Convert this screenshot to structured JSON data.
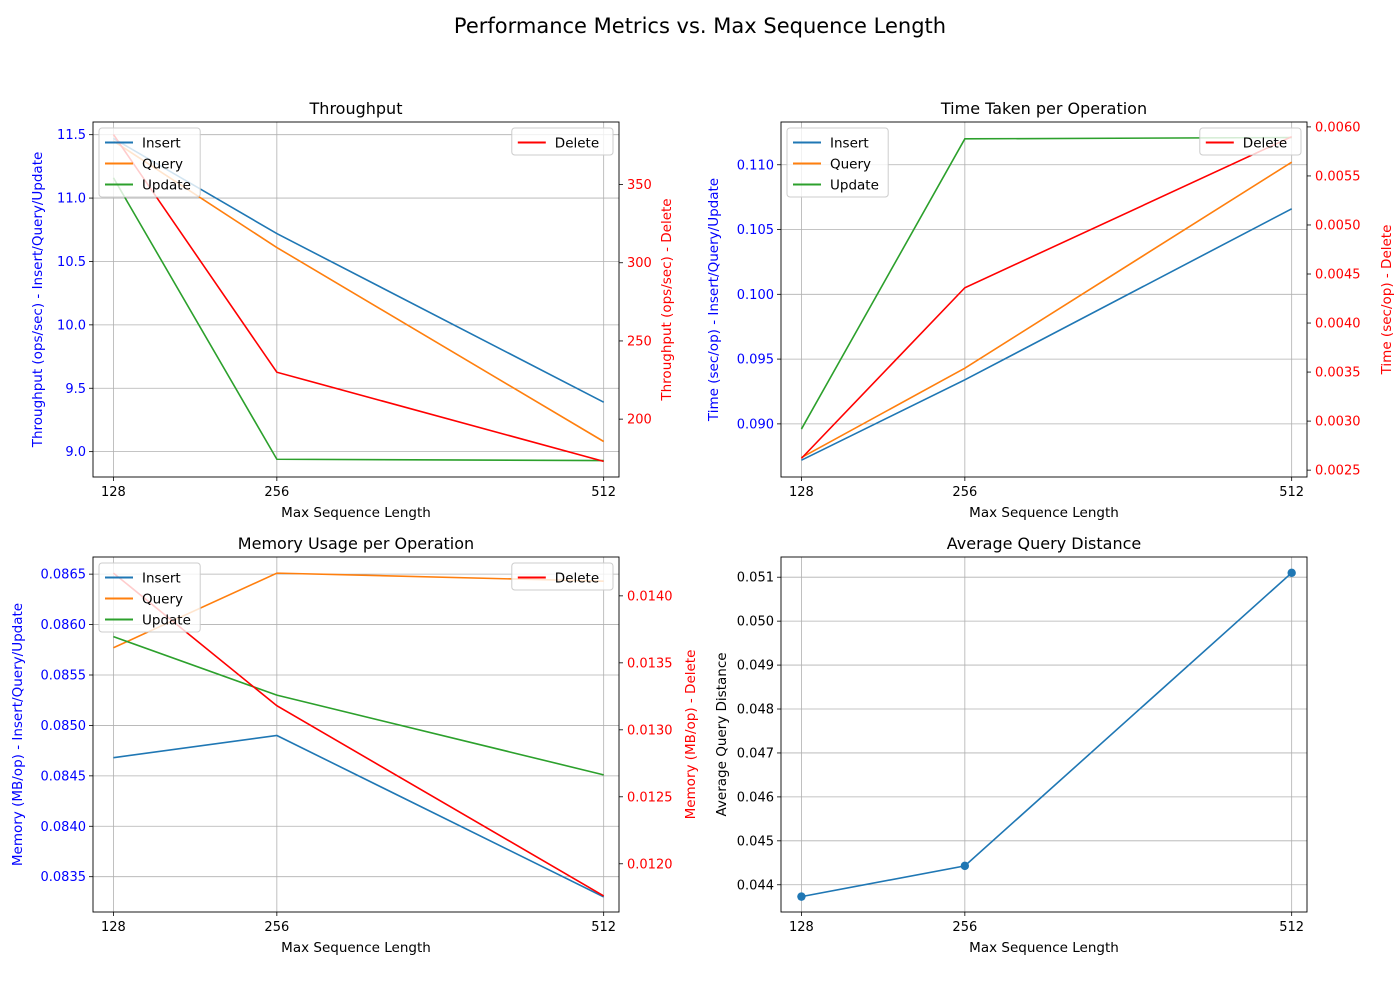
{
  "figure": {
    "title": "Performance Metrics vs. Max Sequence Length"
  },
  "colors": {
    "insert": "#1f77b4",
    "query": "#ff7f0e",
    "update": "#2ca02c",
    "delete": "#ff0000",
    "left_axis": "#0000ff",
    "right_axis": "#ff0000",
    "grid": "#b0b0b0"
  },
  "chart_data": [
    {
      "id": "throughput",
      "type": "line",
      "title": "Throughput",
      "xlabel": "Max Sequence Length",
      "ylabel": "Throughput (ops/sec) - Insert/Query/Update",
      "ylabel_right": "Throughput (ops/sec) - Delete",
      "x": [
        128,
        256,
        512
      ],
      "xlim": [
        112,
        524
      ],
      "ylim": [
        8.8,
        11.6
      ],
      "ylim_right": [
        163,
        390
      ],
      "yticks": [
        9.0,
        9.5,
        10.0,
        10.5,
        11.0,
        11.5
      ],
      "yticks_right": [
        200,
        250,
        300,
        350
      ],
      "ytick_decimals": 1,
      "ytick_decimals_right": 0,
      "series": [
        {
          "name": "Insert",
          "color": "#1f77b4",
          "values": [
            11.47,
            10.72,
            9.39
          ]
        },
        {
          "name": "Query",
          "color": "#ff7f0e",
          "values": [
            11.45,
            10.61,
            9.08
          ]
        },
        {
          "name": "Update",
          "color": "#2ca02c",
          "values": [
            11.16,
            8.94,
            8.93
          ]
        }
      ],
      "series_right": [
        {
          "name": "Delete",
          "color": "#ff0000",
          "values": [
            382,
            230,
            173
          ]
        }
      ],
      "legend": "top-left",
      "legend_right": "top-right",
      "grid": true
    },
    {
      "id": "time",
      "type": "line",
      "title": "Time Taken per Operation",
      "xlabel": "Max Sequence Length",
      "ylabel": "Time (sec/op) - Insert/Query/Update",
      "ylabel_right": "Time (sec/op) - Delete",
      "x": [
        128,
        256,
        512
      ],
      "xlim": [
        112,
        524
      ],
      "ylim": [
        0.0859,
        0.1133
      ],
      "ylim_right": [
        0.00243,
        0.00605
      ],
      "yticks": [
        0.09,
        0.095,
        0.1,
        0.105,
        0.11
      ],
      "yticks_right": [
        0.0025,
        0.003,
        0.0035,
        0.004,
        0.0045,
        0.005,
        0.0055,
        0.006
      ],
      "ytick_decimals": 3,
      "ytick_decimals_right": 4,
      "series": [
        {
          "name": "Insert",
          "color": "#1f77b4",
          "values": [
            0.0872,
            0.0934,
            0.1066
          ]
        },
        {
          "name": "Query",
          "color": "#ff7f0e",
          "values": [
            0.0874,
            0.0943,
            0.1102
          ]
        },
        {
          "name": "Update",
          "color": "#2ca02c",
          "values": [
            0.0896,
            0.112,
            0.1121
          ]
        }
      ],
      "series_right": [
        {
          "name": "Delete",
          "color": "#ff0000",
          "values": [
            0.00262,
            0.00436,
            0.0059
          ]
        }
      ],
      "legend": "top-left",
      "legend_right": "top-right",
      "grid": true
    },
    {
      "id": "memory",
      "type": "line",
      "title": "Memory Usage per Operation",
      "xlabel": "Max Sequence Length",
      "ylabel": "Memory (MB/op) - Insert/Query/Update",
      "ylabel_right": "Memory (MB/op) - Delete",
      "x": [
        128,
        256,
        512
      ],
      "xlim": [
        112,
        524
      ],
      "ylim": [
        0.08315,
        0.08667
      ],
      "ylim_right": [
        0.01164,
        0.01429
      ],
      "yticks": [
        0.0835,
        0.084,
        0.0845,
        0.085,
        0.0855,
        0.086,
        0.0865
      ],
      "yticks_right": [
        0.012,
        0.0125,
        0.013,
        0.0135,
        0.014
      ],
      "ytick_decimals": 4,
      "ytick_decimals_right": 4,
      "series": [
        {
          "name": "Insert",
          "color": "#1f77b4",
          "values": [
            0.08468,
            0.0849,
            0.0833
          ]
        },
        {
          "name": "Query",
          "color": "#ff7f0e",
          "values": [
            0.08577,
            0.08651,
            0.08643
          ]
        },
        {
          "name": "Update",
          "color": "#2ca02c",
          "values": [
            0.08588,
            0.0853,
            0.08451
          ]
        }
      ],
      "series_right": [
        {
          "name": "Delete",
          "color": "#ff0000",
          "values": [
            0.01417,
            0.01318,
            0.01176
          ]
        }
      ],
      "legend": "top-left",
      "legend_right": "top-right",
      "grid": true
    },
    {
      "id": "distance",
      "type": "line",
      "title": "Average Query Distance",
      "xlabel": "Max Sequence Length",
      "ylabel": "Average Query Distance",
      "x": [
        128,
        256,
        512
      ],
      "xlim": [
        112,
        524
      ],
      "ylim": [
        0.04338,
        0.05146
      ],
      "yticks": [
        0.044,
        0.045,
        0.046,
        0.047,
        0.048,
        0.049,
        0.05,
        0.051
      ],
      "ytick_decimals": 3,
      "series": [
        {
          "name": "Average Query Distance",
          "color": "#1f77b4",
          "values": [
            0.04373,
            0.04443,
            0.0511
          ],
          "markers": true
        }
      ],
      "grid": true
    }
  ]
}
